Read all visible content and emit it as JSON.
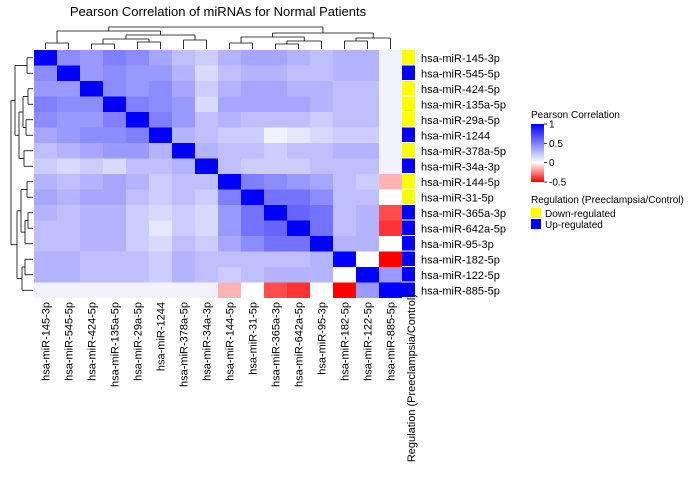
{
  "chart_data": {
    "type": "heatmap",
    "title": "Pearson Correlation of miRNAs for Normal Patients",
    "rows": [
      "hsa-miR-145-3p",
      "hsa-miR-545-5p",
      "hsa-miR-424-5p",
      "hsa-miR-135a-5p",
      "hsa-miR-29a-5p",
      "hsa-miR-1244",
      "hsa-miR-378a-5p",
      "hsa-miR-34a-3p",
      "hsa-miR-144-5p",
      "hsa-miR-31-5p",
      "hsa-miR-365a-3p",
      "hsa-miR-642a-5p",
      "hsa-miR-95-3p",
      "hsa-miR-182-5p",
      "hsa-miR-122-5p",
      "hsa-miR-885-5p"
    ],
    "columns": [
      "hsa-miR-145-3p",
      "hsa-miR-545-5p",
      "hsa-miR-424-5p",
      "hsa-miR-135a-5p",
      "hsa-miR-29a-5p",
      "hsa-miR-1244",
      "hsa-miR-378a-5p",
      "hsa-miR-34a-3p",
      "hsa-miR-144-5p",
      "hsa-miR-31-5p",
      "hsa-miR-365a-3p",
      "hsa-miR-642a-5p",
      "hsa-miR-95-3p",
      "hsa-miR-182-5p",
      "hsa-miR-122-5p",
      "hsa-miR-885-5p"
    ],
    "values": [
      [
        1.0,
        0.45,
        0.4,
        0.5,
        0.45,
        0.35,
        0.25,
        0.2,
        0.3,
        0.35,
        0.35,
        0.3,
        0.25,
        0.3,
        0.3,
        0.05
      ],
      [
        0.45,
        1.0,
        0.4,
        0.45,
        0.4,
        0.4,
        0.3,
        0.15,
        0.25,
        0.3,
        0.3,
        0.25,
        0.25,
        0.3,
        0.3,
        0.05
      ],
      [
        0.4,
        0.4,
        1.0,
        0.45,
        0.4,
        0.45,
        0.35,
        0.2,
        0.3,
        0.35,
        0.35,
        0.3,
        0.3,
        0.25,
        0.25,
        0.05
      ],
      [
        0.5,
        0.45,
        0.45,
        1.0,
        0.5,
        0.45,
        0.4,
        0.15,
        0.35,
        0.35,
        0.35,
        0.35,
        0.3,
        0.25,
        0.25,
        0.05
      ],
      [
        0.45,
        0.4,
        0.4,
        0.5,
        1.0,
        0.5,
        0.4,
        0.25,
        0.3,
        0.25,
        0.25,
        0.25,
        0.2,
        0.25,
        0.25,
        0.05
      ],
      [
        0.35,
        0.4,
        0.45,
        0.45,
        0.5,
        1.0,
        0.3,
        0.25,
        0.2,
        0.2,
        0.05,
        0.1,
        0.15,
        0.2,
        0.2,
        0.05
      ],
      [
        0.25,
        0.3,
        0.35,
        0.4,
        0.4,
        0.3,
        1.0,
        0.3,
        0.25,
        0.25,
        0.2,
        0.25,
        0.25,
        0.3,
        0.3,
        0.05
      ],
      [
        0.2,
        0.15,
        0.2,
        0.15,
        0.25,
        0.25,
        0.3,
        1.0,
        0.25,
        0.2,
        0.2,
        0.2,
        0.25,
        0.25,
        0.25,
        0.05
      ],
      [
        0.3,
        0.25,
        0.3,
        0.35,
        0.3,
        0.2,
        0.25,
        0.25,
        1.0,
        0.5,
        0.45,
        0.4,
        0.35,
        0.25,
        0.2,
        -0.15
      ],
      [
        0.35,
        0.3,
        0.35,
        0.35,
        0.25,
        0.2,
        0.25,
        0.2,
        0.5,
        1.0,
        0.55,
        0.55,
        0.45,
        0.25,
        0.25,
        0.0
      ],
      [
        0.3,
        0.25,
        0.3,
        0.3,
        0.2,
        0.15,
        0.2,
        0.15,
        0.4,
        0.55,
        1.0,
        0.6,
        0.55,
        0.25,
        0.3,
        -0.35
      ],
      [
        0.25,
        0.25,
        0.3,
        0.3,
        0.2,
        0.1,
        0.2,
        0.15,
        0.4,
        0.55,
        0.6,
        1.0,
        0.55,
        0.25,
        0.3,
        -0.4
      ],
      [
        0.25,
        0.25,
        0.3,
        0.3,
        0.2,
        0.15,
        0.25,
        0.2,
        0.35,
        0.45,
        0.55,
        0.55,
        1.0,
        0.3,
        0.3,
        0.0
      ],
      [
        0.3,
        0.3,
        0.25,
        0.25,
        0.25,
        0.2,
        0.3,
        0.25,
        0.25,
        0.25,
        0.25,
        0.25,
        0.3,
        1.0,
        0.0,
        -0.5
      ],
      [
        0.3,
        0.3,
        0.25,
        0.25,
        0.25,
        0.2,
        0.3,
        0.25,
        0.2,
        0.25,
        0.3,
        0.3,
        0.3,
        0.0,
        1.0,
        0.4
      ],
      [
        0.05,
        0.05,
        0.05,
        0.05,
        0.05,
        0.05,
        0.05,
        0.05,
        -0.15,
        0.0,
        -0.35,
        -0.4,
        0.0,
        -0.5,
        0.4,
        1.0
      ]
    ],
    "annotation": {
      "label": "Regulation (Preeclampsia/Control)",
      "values": [
        "Down-regulated",
        "Up-regulated",
        "Down-regulated",
        "Down-regulated",
        "Down-regulated",
        "Up-regulated",
        "Down-regulated",
        "Up-regulated",
        "Down-regulated",
        "Down-regulated",
        "Up-regulated",
        "Up-regulated",
        "Up-regulated",
        "Up-regulated",
        "Up-regulated",
        "Up-regulated"
      ],
      "categories": [
        "Down-regulated",
        "Up-regulated"
      ],
      "colors": {
        "Down-regulated": "#ffff00",
        "Up-regulated": "#0000ff"
      }
    },
    "legend": {
      "title": "Pearson Correlation",
      "ticks": [
        1,
        0.5,
        0,
        -0.5
      ],
      "tick_labels": [
        "1",
        "0.5",
        "0",
        "-0.5"
      ],
      "range": [
        -0.5,
        1
      ],
      "colors": {
        "high": "#0000ff",
        "mid": "#ffffff",
        "low": "#ff0000"
      }
    },
    "grid": false,
    "dendrograms": [
      "rows",
      "columns"
    ]
  }
}
